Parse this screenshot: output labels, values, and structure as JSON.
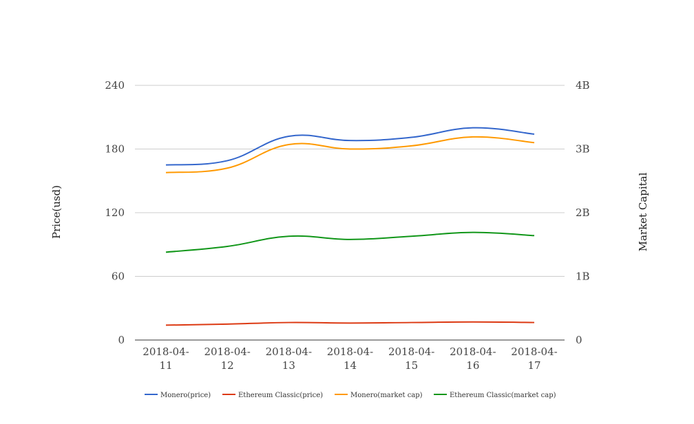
{
  "chart_data": {
    "type": "line",
    "categories": [
      "2018-04-11",
      "2018-04-12",
      "2018-04-13",
      "2018-04-14",
      "2018-04-15",
      "2018-04-16",
      "2018-04-17"
    ],
    "category_labels": [
      [
        "2018-04-",
        "11"
      ],
      [
        "2018-04-",
        "12"
      ],
      [
        "2018-04-",
        "13"
      ],
      [
        "2018-04-",
        "14"
      ],
      [
        "2018-04-",
        "15"
      ],
      [
        "2018-04-",
        "16"
      ],
      [
        "2018-04-",
        "17"
      ]
    ],
    "ylabel": "Price(usd)",
    "y2label": "Market Capital",
    "ylim": [
      0,
      240
    ],
    "y2lim": [
      0,
      4000000000
    ],
    "yticks": [
      "0",
      "60",
      "120",
      "180",
      "240"
    ],
    "y2ticks": [
      "0",
      "1B",
      "2B",
      "3B",
      "4B"
    ],
    "grid": true,
    "legend_position": "bottom",
    "series": [
      {
        "name": "Monero(price)",
        "axis": "left",
        "color": "#3366cc",
        "values": [
          165,
          169,
          192,
          188,
          191,
          200,
          194
        ]
      },
      {
        "name": "Ethereum Classic(price)",
        "axis": "left",
        "color": "#dc3912",
        "values": [
          14,
          15,
          16.5,
          16,
          16.5,
          17,
          16.5
        ]
      },
      {
        "name": "Monero(market cap)",
        "axis": "right",
        "color": "#ff9900",
        "values": [
          2630000000,
          2700000000,
          3070000000,
          3000000000,
          3050000000,
          3190000000,
          3100000000
        ]
      },
      {
        "name": "Ethereum Classic(market cap)",
        "axis": "right",
        "color": "#109618",
        "values": [
          1380000000,
          1470000000,
          1630000000,
          1580000000,
          1630000000,
          1690000000,
          1640000000
        ]
      }
    ]
  }
}
